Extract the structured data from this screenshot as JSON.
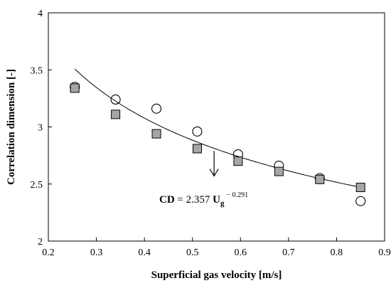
{
  "chart_data": {
    "type": "scatter",
    "title": "",
    "xlabel": "Superficial gas velocity [m/s]",
    "ylabel": "Correlation dimension [-]",
    "xlim": [
      0.2,
      0.9
    ],
    "ylim": [
      2,
      4
    ],
    "x_ticks": [
      "0.2",
      "0.3",
      "0.4",
      "0.5",
      "0.6",
      "0.7",
      "0.8",
      "0.9"
    ],
    "y_ticks": [
      "2",
      "2.5",
      "3",
      "3.5",
      "4"
    ],
    "grid": false,
    "legend": "none",
    "series": [
      {
        "marker": "open-circle",
        "x": [
          0.255,
          0.34,
          0.425,
          0.51,
          0.595,
          0.68,
          0.765,
          0.85
        ],
        "y": [
          3.35,
          3.24,
          3.16,
          2.96,
          2.76,
          2.66,
          2.55,
          2.35
        ]
      },
      {
        "marker": "filled-square",
        "color": "#a6a6a6",
        "x": [
          0.255,
          0.34,
          0.425,
          0.51,
          0.595,
          0.68,
          0.765,
          0.85
        ],
        "y": [
          3.34,
          3.11,
          2.94,
          2.81,
          2.7,
          2.61,
          2.54,
          2.47
        ]
      }
    ],
    "fit": {
      "coefficient": 2.357,
      "exponent": -0.291,
      "x_range": [
        0.255,
        0.85
      ]
    },
    "annotation": {
      "lhs": "CD",
      "equals": " = 2.357 ",
      "var": "U",
      "var_sub": "g",
      "exp": "− 0.291",
      "arrow_x": 0.545,
      "arrow_y_from": 2.79,
      "arrow_y_to": 2.57
    }
  }
}
